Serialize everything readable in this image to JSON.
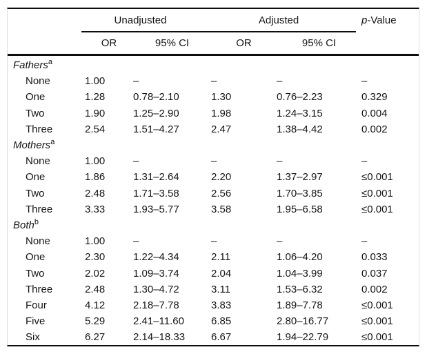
{
  "header": {
    "unadjusted": "Unadjusted",
    "adjusted": "Adjusted",
    "p_italic": "p",
    "p_suffix": "-Value",
    "or_unadjusted": "OR",
    "ci_unadjusted": "95% CI",
    "or_adjusted": "OR",
    "ci_adjusted": "95% CI"
  },
  "sections": [
    {
      "label": "Fathers",
      "sup": "a",
      "rows": [
        {
          "label": "None",
          "or_u": "1.00",
          "ci_u": "–",
          "or_a": "–",
          "ci_a": "–",
          "p": "–"
        },
        {
          "label": "One",
          "or_u": "1.28",
          "ci_u": "0.78–2.10",
          "or_a": "1.30",
          "ci_a": "0.76–2.23",
          "p": "0.329"
        },
        {
          "label": "Two",
          "or_u": "1.90",
          "ci_u": "1.25–2.90",
          "or_a": "1.98",
          "ci_a": "1.24–3.15",
          "p": "0.004"
        },
        {
          "label": "Three",
          "or_u": "2.54",
          "ci_u": "1.51–4.27",
          "or_a": "2.47",
          "ci_a": "1.38–4.42",
          "p": "0.002"
        }
      ]
    },
    {
      "label": "Mothers",
      "sup": "a",
      "rows": [
        {
          "label": "None",
          "or_u": "1.00",
          "ci_u": "–",
          "or_a": "–",
          "ci_a": "–",
          "p": "–"
        },
        {
          "label": "One",
          "or_u": "1.86",
          "ci_u": "1.31–2.64",
          "or_a": "2.20",
          "ci_a": "1.37–2.97",
          "p": "≤0.001"
        },
        {
          "label": "Two",
          "or_u": "2.48",
          "ci_u": "1.71–3.58",
          "or_a": "2.56",
          "ci_a": "1.70–3.85",
          "p": "≤0.001"
        },
        {
          "label": "Three",
          "or_u": "3.33",
          "ci_u": "1.93–5.77",
          "or_a": "3.58",
          "ci_a": "1.95–6.58",
          "p": "≤0.001"
        }
      ]
    },
    {
      "label": "Both",
      "sup": "b",
      "rows": [
        {
          "label": "None",
          "or_u": "1.00",
          "ci_u": "–",
          "or_a": "–",
          "ci_a": "–",
          "p": "–"
        },
        {
          "label": "One",
          "or_u": "2.30",
          "ci_u": "1.22–4.34",
          "or_a": "2.11",
          "ci_a": "1.06–4.20",
          "p": "0.033"
        },
        {
          "label": "Two",
          "or_u": "2.02",
          "ci_u": "1.09–3.74",
          "or_a": "2.04",
          "ci_a": "1.04–3.99",
          "p": "0.037"
        },
        {
          "label": "Three",
          "or_u": "2.48",
          "ci_u": "1.30–4.72",
          "or_a": "3.11",
          "ci_a": "1.53–6.32",
          "p": "0.002"
        },
        {
          "label": "Four",
          "or_u": "4.12",
          "ci_u": "2.18–7.78",
          "or_a": "3.83",
          "ci_a": "1.89–7.78",
          "p": "≤0.001"
        },
        {
          "label": "Five",
          "or_u": "5.29",
          "ci_u": "2.41–11.60",
          "or_a": "6.85",
          "ci_a": "2.80–16.77",
          "p": "≤0.001"
        },
        {
          "label": "Six",
          "or_u": "6.27",
          "ci_u": "2.14–18.33",
          "or_a": "6.67",
          "ci_a": "1.94–22.79",
          "p": "≤0.001"
        }
      ]
    }
  ],
  "colors": {
    "rule": "#0d0d0d",
    "text": "#141414",
    "frame": "#dcdcdc",
    "background": "#ffffff"
  }
}
